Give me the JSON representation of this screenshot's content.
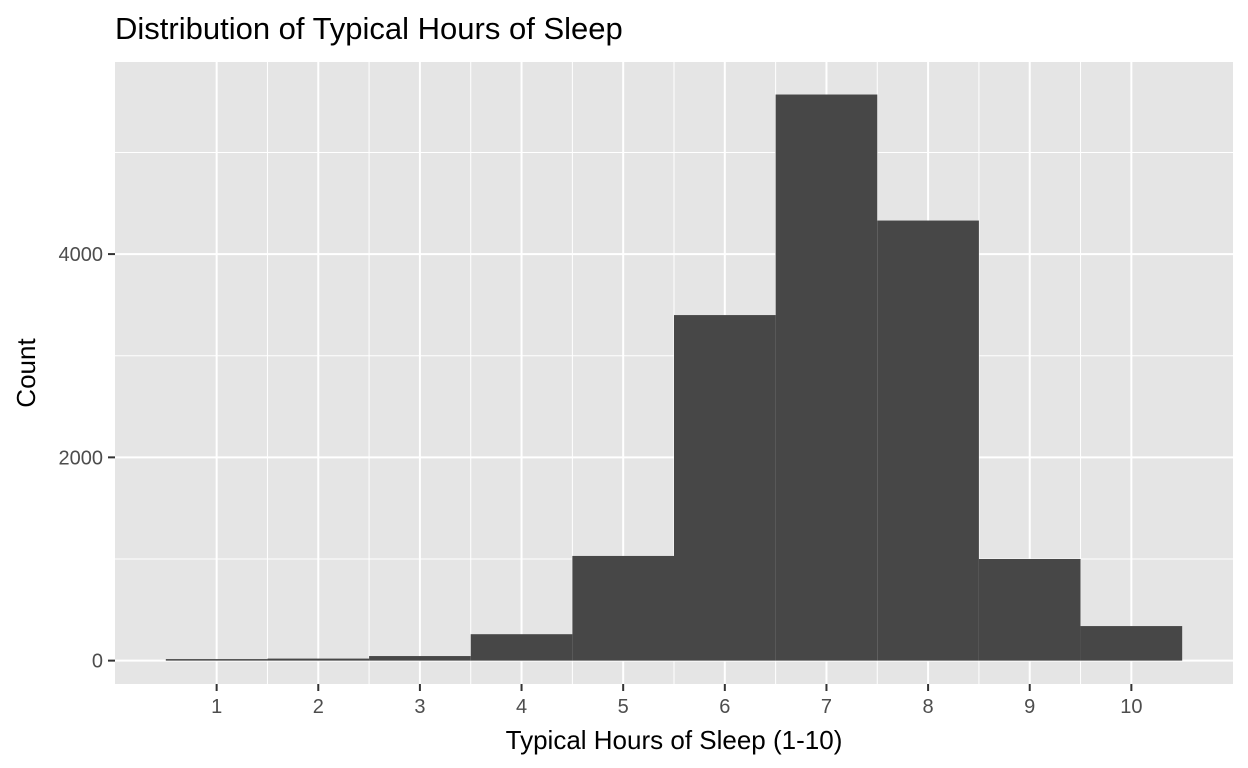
{
  "chart_data": {
    "type": "bar",
    "title": "Distribution of Typical Hours of Sleep",
    "xlabel": "Typical Hours of Sleep (1-10)",
    "ylabel": "Count",
    "categories": [
      "1",
      "2",
      "3",
      "4",
      "5",
      "6",
      "7",
      "8",
      "9",
      "10"
    ],
    "x": [
      1,
      2,
      3,
      4,
      5,
      6,
      7,
      8,
      9,
      10
    ],
    "values": [
      15,
      20,
      45,
      260,
      1030,
      3400,
      5570,
      4330,
      1000,
      340
    ],
    "xlim": [
      0,
      11
    ],
    "ylim": [
      -230,
      5890
    ],
    "yticks": [
      0,
      2000,
      4000
    ],
    "yticks_minor": [
      1000,
      3000,
      5000
    ],
    "grid": true,
    "colors": {
      "panel_background": "#e5e5e5",
      "grid": "#ffffff",
      "bar_fill": "#474747",
      "tick_text": "#4d4d4d",
      "tick_mark": "#333333"
    }
  }
}
